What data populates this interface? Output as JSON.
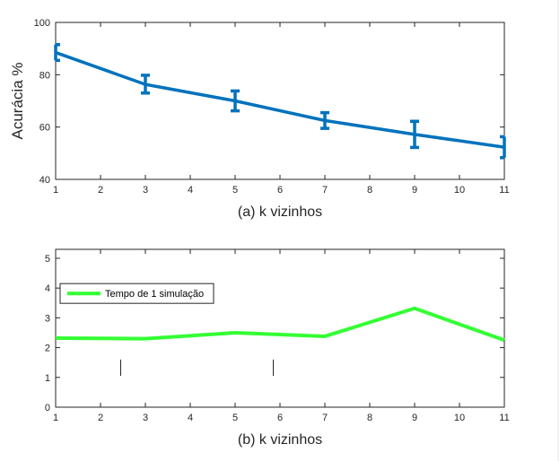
{
  "chart_data": [
    {
      "type": "line",
      "title": "",
      "xlabel": "(a) k vizinhos",
      "ylabel": "Acurácia %",
      "xlim": [
        1,
        11
      ],
      "ylim": [
        40,
        100
      ],
      "xticks": [
        1,
        2,
        3,
        4,
        5,
        6,
        7,
        8,
        9,
        10,
        11
      ],
      "yticks": [
        40,
        60,
        80,
        100
      ],
      "grid": false,
      "error_bars": true,
      "series": [
        {
          "color": "#0072BD",
          "x": [
            1,
            3,
            5,
            7,
            9,
            11
          ],
          "y": [
            88.5,
            76.3,
            70.0,
            62.5,
            57.2,
            52.3
          ],
          "err_low": [
            3.0,
            3.3,
            3.8,
            3.0,
            5.0,
            4.0
          ],
          "err_high": [
            3.0,
            3.5,
            3.8,
            3.0,
            5.0,
            4.0
          ]
        }
      ]
    },
    {
      "type": "line",
      "title": "",
      "xlabel": "(b) k vizinhos",
      "ylabel": "",
      "xlim": [
        1,
        11
      ],
      "ylim": [
        0,
        5.3
      ],
      "xticks": [
        1,
        2,
        3,
        4,
        5,
        6,
        7,
        8,
        9,
        10,
        11
      ],
      "yticks": [
        0,
        1,
        2,
        3,
        4,
        5
      ],
      "grid": false,
      "legend": "upper-left",
      "series": [
        {
          "name": "Tempo de 1 simulação",
          "color": "#33FF33",
          "x": [
            1,
            3,
            5,
            7,
            9,
            11
          ],
          "y": [
            2.32,
            2.3,
            2.5,
            2.38,
            3.32,
            2.25
          ]
        }
      ],
      "markers": [
        {
          "x": 2.45,
          "y_from": 1.05,
          "y_to": 1.6
        },
        {
          "x": 5.85,
          "y_from": 1.05,
          "y_to": 1.6
        }
      ]
    }
  ]
}
